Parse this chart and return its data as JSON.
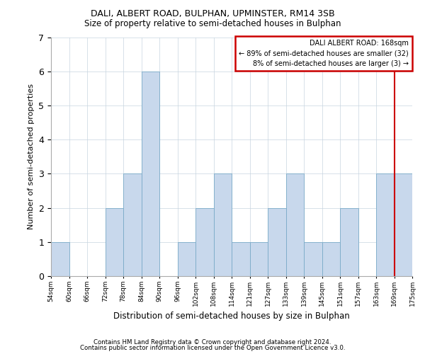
{
  "title": "DALI, ALBERT ROAD, BULPHAN, UPMINSTER, RM14 3SB",
  "subtitle": "Size of property relative to semi-detached houses in Bulphan",
  "xlabel": "Distribution of semi-detached houses by size in Bulphan",
  "ylabel": "Number of semi-detached properties",
  "bin_labels": [
    "54sqm",
    "60sqm",
    "66sqm",
    "72sqm",
    "78sqm",
    "84sqm",
    "90sqm",
    "96sqm",
    "102sqm",
    "108sqm",
    "114sqm",
    "121sqm",
    "127sqm",
    "133sqm",
    "139sqm",
    "145sqm",
    "151sqm",
    "157sqm",
    "163sqm",
    "169sqm",
    "175sqm"
  ],
  "values": [
    1,
    0,
    0,
    2,
    3,
    6,
    0,
    1,
    2,
    3,
    1,
    1,
    2,
    3,
    1,
    1,
    2,
    0,
    3,
    3
  ],
  "bar_facecolor": "#c8d8ec",
  "bar_edgecolor": "#7aaac8",
  "grid_color": "#c8d4e0",
  "vline_color": "#cc0000",
  "vline_x_bin": 18.5,
  "annotation_title": "DALI ALBERT ROAD: 168sqm",
  "annotation_line1": "← 89% of semi-detached houses are smaller (32)",
  "annotation_line2": "8% of semi-detached houses are larger (3) →",
  "ylim": [
    0,
    7
  ],
  "yticks": [
    0,
    1,
    2,
    3,
    4,
    5,
    6,
    7
  ],
  "footnote1": "Contains HM Land Registry data © Crown copyright and database right 2024.",
  "footnote2": "Contains public sector information licensed under the Open Government Licence v3.0."
}
